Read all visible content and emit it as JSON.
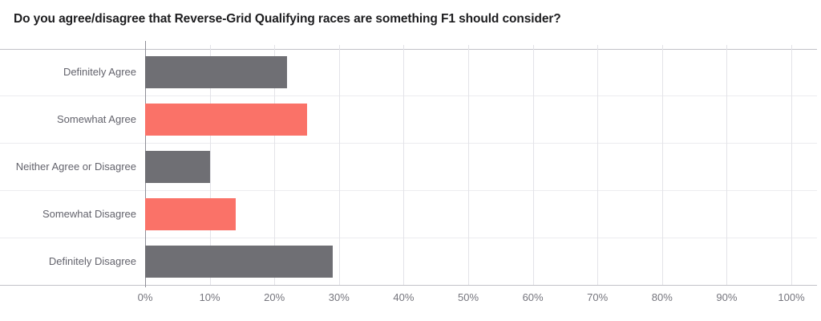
{
  "chart_data": {
    "type": "bar",
    "orientation": "horizontal",
    "title": "Do you agree/disagree that Reverse-Grid Qualifying races are something F1 should consider?",
    "categories": [
      "Definitely Agree",
      "Somewhat Agree",
      "Neither Agree or Disagree",
      "Somewhat Disagree",
      "Definitely Disagree"
    ],
    "values": [
      22,
      25,
      10,
      14,
      29
    ],
    "value_unit": "%",
    "xlabel": "",
    "ylabel": "",
    "xlim": [
      0,
      100
    ],
    "x_tick_step": 10,
    "x_tick_labels": [
      "0%",
      "10%",
      "20%",
      "30%",
      "40%",
      "50%",
      "60%",
      "70%",
      "80%",
      "90%",
      "100%"
    ],
    "grid": "on",
    "legend": "none",
    "bar_colors": [
      "#6F6F74",
      "#FA7268",
      "#6F6F74",
      "#FA7268",
      "#6F6F74"
    ]
  },
  "style": {
    "bar_gray": "#6F6F74",
    "bar_coral": "#FA7268",
    "vertical_gridline": "#E3E3E8",
    "row_line": "#ECECEF",
    "frame_line": "#C2C2C8",
    "y_axis_line": "#8F8F97",
    "title_color": "#1D1D1F",
    "category_label_color": "#63636C",
    "tick_label_color": "#75757D",
    "background": "#FFFFFF"
  }
}
